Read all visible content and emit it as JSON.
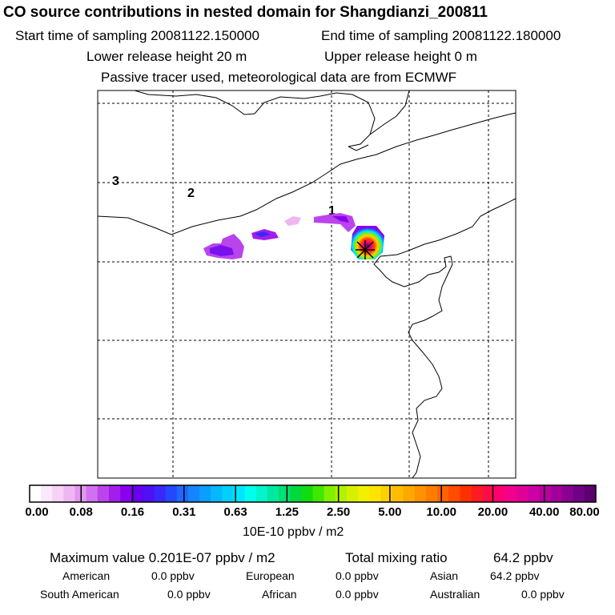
{
  "header": {
    "title": "CO  source contributions in nested domain for Shangdianzi_200811",
    "start_label": "Start time of sampling 20081122.150000",
    "end_label": "End time of sampling 20081122.180000",
    "lower_label": "Lower release height   20 m",
    "upper_label": "Upper release height    0 m",
    "tracer_note": "Passive tracer used, meteorological data are from ECMWF"
  },
  "map": {
    "region_labels": [
      "1",
      "2",
      "3"
    ],
    "receptor_marker": "x-marker-icon"
  },
  "colorbar": {
    "ticks": [
      "0.00",
      "0.08",
      "0.16",
      "0.31",
      "0.63",
      "1.25",
      "2.50",
      "5.00",
      "10.00",
      "20.00",
      "40.00",
      "80.00"
    ],
    "unit": "10E-10 ppbv / m2",
    "colors": [
      "#ffffff",
      "#fbe8fb",
      "#f6d2f6",
      "#f0b6f0",
      "#e296f0",
      "#d071ef",
      "#bb44ec",
      "#a41eeb",
      "#8a00ee",
      "#6a00f0",
      "#4e10f4",
      "#3a28f8",
      "#2448fb",
      "#1e68ff",
      "#1485ff",
      "#0a9eff",
      "#05b8ff",
      "#00d0ff",
      "#00e6ff",
      "#00ffee",
      "#00f5c8",
      "#00e8a0",
      "#00e070",
      "#00d840",
      "#10dc10",
      "#40e800",
      "#80f000",
      "#b0f200",
      "#d8f000",
      "#f0f000",
      "#ffe400",
      "#ffd000",
      "#ffbc00",
      "#ffa800",
      "#ff9200",
      "#ff7c00",
      "#ff6400",
      "#ff4c00",
      "#ff3000",
      "#ff1c20",
      "#ff0c48",
      "#ff0070",
      "#f2008c",
      "#e00098",
      "#cc00a4",
      "#b800a0",
      "#a2009a",
      "#8a0090",
      "#720084",
      "#5a0070"
    ]
  },
  "summary": {
    "max_label": "Maximum value  0.201E-07 ppbv / m2",
    "total_label": "Total mixing ratio",
    "total_value": "64.2 ppbv",
    "american_label": "American",
    "american_value": "0.0 ppbv",
    "european_label": "European",
    "european_value": "0.0 ppbv",
    "asian_label": "Asian",
    "asian_value": "64.2 ppbv",
    "south_american_label": "South American",
    "south_american_value": "0.0 ppbv",
    "african_label": "African",
    "african_value": "0.0 ppbv",
    "australian_label": "Australian",
    "australian_value": "0.0 ppbv"
  }
}
